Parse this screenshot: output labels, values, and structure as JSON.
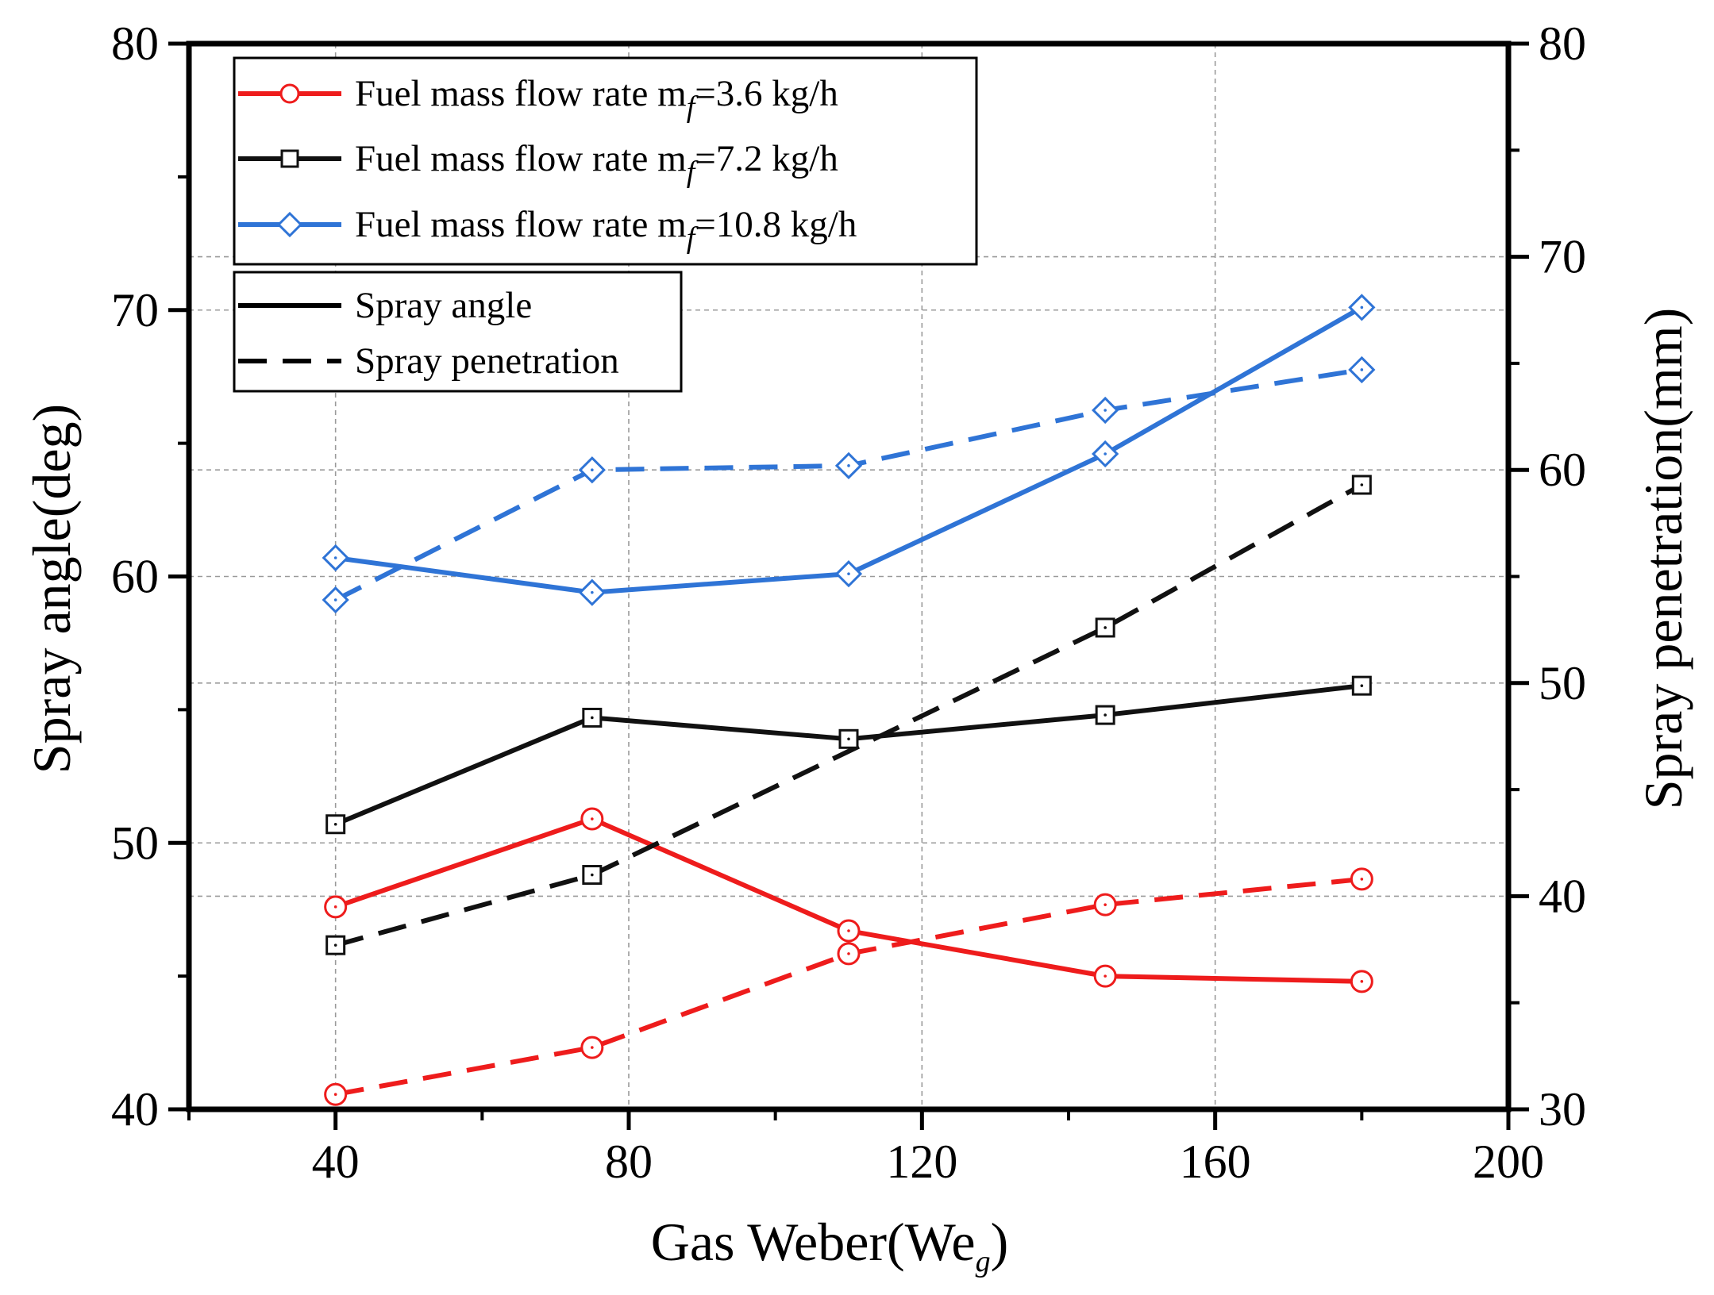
{
  "chart_data": {
    "type": "line",
    "xlabel": "Gas Weber(We",
    "xlabel_sub": "g",
    "xlabel_close": ")",
    "ylabel_left": "Spray angle(deg)",
    "ylabel_right": "Spray penetration(mm)",
    "xlim": [
      20,
      200
    ],
    "ylim_left": [
      40,
      80
    ],
    "ylim_right": [
      30,
      80
    ],
    "x_ticks": [
      "40",
      "80",
      "120",
      "160",
      "200"
    ],
    "y_left_ticks": [
      "40",
      "50",
      "60",
      "70",
      "80"
    ],
    "y_right_ticks": [
      "30",
      "40",
      "50",
      "60",
      "70",
      "80"
    ],
    "x": [
      40,
      75,
      110,
      145,
      180
    ],
    "series": [
      {
        "name": "Fuel mass flow rate m_f=3.6 kg/h",
        "color": "#ee1c1c",
        "marker": "circle",
        "spray_angle": [
          47.6,
          50.9,
          46.7,
          45.0,
          44.8
        ],
        "spray_penetration": [
          30.7,
          32.9,
          37.3,
          39.6,
          40.8
        ]
      },
      {
        "name": "Fuel mass flow rate m_f=7.2 kg/h",
        "color": "#111111",
        "marker": "square",
        "spray_angle": [
          50.7,
          54.7,
          53.9,
          54.8,
          55.9
        ],
        "spray_penetration": [
          37.7,
          41.0,
          null,
          52.6,
          59.3
        ]
      },
      {
        "name": "Fuel mass flow rate m_f=10.8 kg/h",
        "color": "#2f74d6",
        "marker": "diamond",
        "spray_angle": [
          60.7,
          59.4,
          60.1,
          64.6,
          70.1
        ],
        "spray_penetration": [
          53.9,
          60.0,
          60.2,
          62.8,
          64.7
        ]
      }
    ],
    "legend_series": {
      "prefix": "Fuel mass flow rate m",
      "sub": "f",
      "values": [
        "=3.6 kg/h",
        "=7.2 kg/h",
        "=10.8 kg/h"
      ]
    },
    "legend_style": {
      "solid": "Spray angle",
      "dashed": "Spray penetration"
    },
    "grid": true,
    "legend_position": "top-left"
  }
}
